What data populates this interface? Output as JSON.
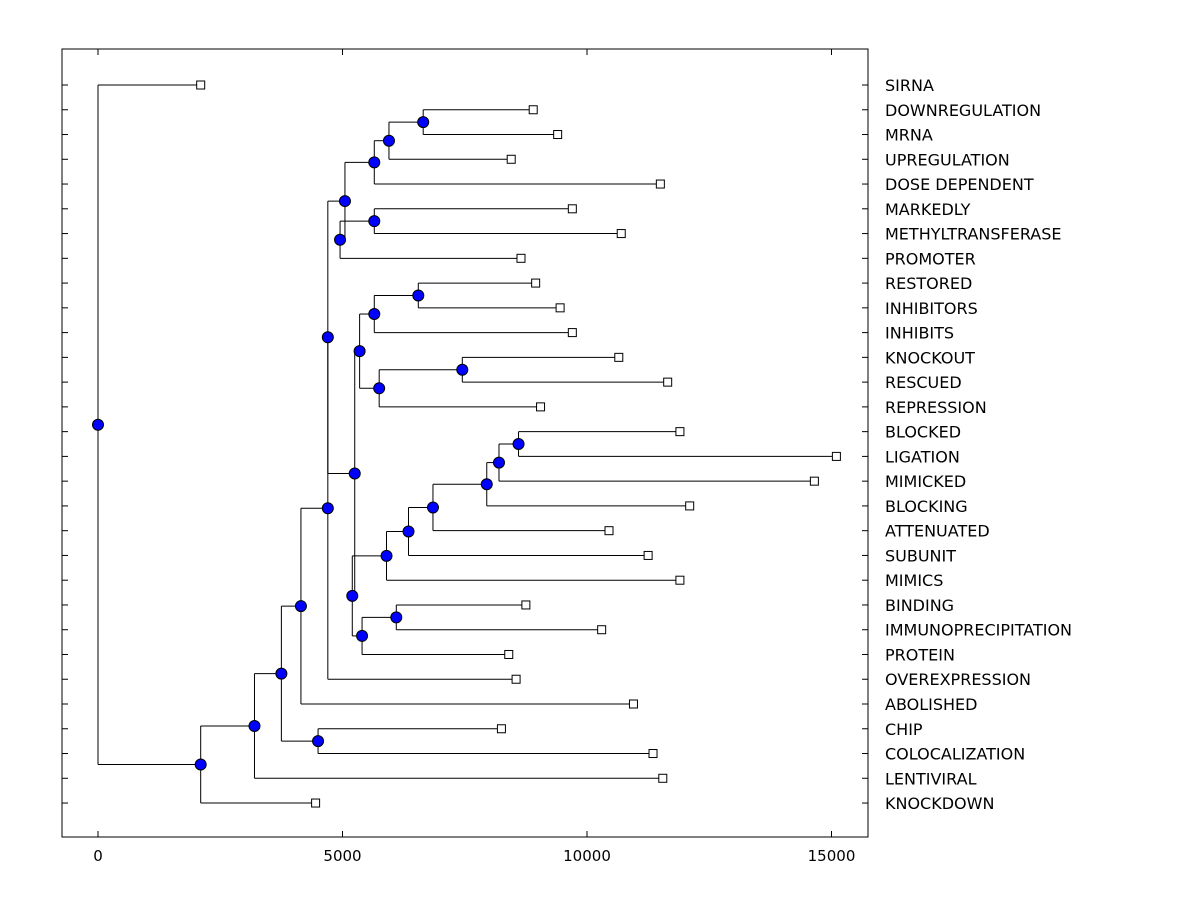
{
  "chart_data": {
    "type": "dendrogram",
    "title": "",
    "xlabel": "",
    "ylabel": "",
    "xlim": [
      -750,
      15750
    ],
    "x_ticks": [
      0,
      5000,
      10000,
      15000
    ],
    "x_tick_labels": [
      "0",
      "5000",
      "10000",
      "15000"
    ],
    "grid": false,
    "colors": {
      "node_fill": "#0000ff",
      "leaf_fill": "#ffffff",
      "line": "#000000"
    },
    "leaves": [
      {
        "id": 0,
        "label": "SIRNA",
        "value": 2100
      },
      {
        "id": 1,
        "label": "DOWNREGULATION",
        "value": 8900
      },
      {
        "id": 2,
        "label": "MRNA",
        "value": 9400
      },
      {
        "id": 3,
        "label": "UPREGULATION",
        "value": 8450
      },
      {
        "id": 4,
        "label": "DOSE DEPENDENT",
        "value": 11500
      },
      {
        "id": 5,
        "label": "MARKEDLY",
        "value": 9700
      },
      {
        "id": 6,
        "label": "METHYLTRANSFERASE",
        "value": 10700
      },
      {
        "id": 7,
        "label": "PROMOTER",
        "value": 8650
      },
      {
        "id": 8,
        "label": "RESTORED",
        "value": 8950
      },
      {
        "id": 9,
        "label": "INHIBITORS",
        "value": 9450
      },
      {
        "id": 10,
        "label": "INHIBITS",
        "value": 9700
      },
      {
        "id": 11,
        "label": "KNOCKOUT",
        "value": 10650
      },
      {
        "id": 12,
        "label": "RESCUED",
        "value": 11650
      },
      {
        "id": 13,
        "label": "REPRESSION",
        "value": 9050
      },
      {
        "id": 14,
        "label": "BLOCKED",
        "value": 11900
      },
      {
        "id": 15,
        "label": "LIGATION",
        "value": 15100
      },
      {
        "id": 16,
        "label": "MIMICKED",
        "value": 14650
      },
      {
        "id": 17,
        "label": "BLOCKING",
        "value": 12100
      },
      {
        "id": 18,
        "label": "ATTENUATED",
        "value": 10450
      },
      {
        "id": 19,
        "label": "SUBUNIT",
        "value": 11250
      },
      {
        "id": 20,
        "label": "MIMICS",
        "value": 11900
      },
      {
        "id": 21,
        "label": "BINDING",
        "value": 8750
      },
      {
        "id": 22,
        "label": "IMMUNOPRECIPITATION",
        "value": 10300
      },
      {
        "id": 23,
        "label": "PROTEIN",
        "value": 8400
      },
      {
        "id": 24,
        "label": "OVEREXPRESSION",
        "value": 8550
      },
      {
        "id": 25,
        "label": "ABOLISHED",
        "value": 10950
      },
      {
        "id": 26,
        "label": "CHIP",
        "value": 8250
      },
      {
        "id": 27,
        "label": "COLOCALIZATION",
        "value": 11350
      },
      {
        "id": 28,
        "label": "LENTIVIRAL",
        "value": 11550
      },
      {
        "id": 29,
        "label": "KNOCKDOWN",
        "value": 4450
      }
    ],
    "nodes": [
      {
        "id": "n1",
        "value": 6650,
        "children": [
          1,
          2
        ]
      },
      {
        "id": "n2",
        "value": 5950,
        "children": [
          "n1",
          3
        ]
      },
      {
        "id": "n3",
        "value": 5650,
        "children": [
          "n2",
          4
        ]
      },
      {
        "id": "n4",
        "value": 5650,
        "children": [
          5,
          6
        ]
      },
      {
        "id": "n5",
        "value": 4950,
        "children": [
          "n4",
          7
        ]
      },
      {
        "id": "n6",
        "value": 5050,
        "children": [
          "n3",
          "n5"
        ]
      },
      {
        "id": "n7",
        "value": 6550,
        "children": [
          8,
          9
        ]
      },
      {
        "id": "n8",
        "value": 5650,
        "children": [
          "n7",
          10
        ]
      },
      {
        "id": "n9",
        "value": 7450,
        "children": [
          11,
          12
        ]
      },
      {
        "id": "n10",
        "value": 5750,
        "children": [
          "n9",
          13
        ]
      },
      {
        "id": "n11",
        "value": 5350,
        "children": [
          "n8",
          "n10"
        ]
      },
      {
        "id": "n12",
        "value": 8600,
        "children": [
          14,
          15
        ]
      },
      {
        "id": "n13",
        "value": 8200,
        "children": [
          "n12",
          16
        ]
      },
      {
        "id": "n14",
        "value": 7950,
        "children": [
          "n13",
          17
        ]
      },
      {
        "id": "n15",
        "value": 6850,
        "children": [
          "n14",
          18
        ]
      },
      {
        "id": "n16",
        "value": 6350,
        "children": [
          "n15",
          19
        ]
      },
      {
        "id": "n17",
        "value": 5900,
        "children": [
          "n16",
          20
        ]
      },
      {
        "id": "n18",
        "value": 6100,
        "children": [
          21,
          22
        ]
      },
      {
        "id": "n19",
        "value": 5400,
        "children": [
          "n18",
          23
        ]
      },
      {
        "id": "n20",
        "value": 5200,
        "children": [
          "n17",
          "n19"
        ]
      },
      {
        "id": "n21",
        "value": 5250,
        "children": [
          "n11",
          "n20"
        ]
      },
      {
        "id": "n22",
        "value": 4700,
        "children": [
          "n6",
          "n21"
        ]
      },
      {
        "id": "n23",
        "value": 4700,
        "children": [
          "n22",
          24
        ]
      },
      {
        "id": "n24",
        "value": 4150,
        "children": [
          "n23",
          25
        ]
      },
      {
        "id": "n25",
        "value": 4500,
        "children": [
          26,
          27
        ]
      },
      {
        "id": "n26",
        "value": 3750,
        "children": [
          "n24",
          "n25"
        ]
      },
      {
        "id": "n27",
        "value": 3200,
        "children": [
          "n26",
          28
        ]
      },
      {
        "id": "n28",
        "value": 2100,
        "children": [
          "n27",
          29
        ]
      },
      {
        "id": "root",
        "value": 0,
        "children": [
          0,
          "n28"
        ]
      }
    ]
  }
}
